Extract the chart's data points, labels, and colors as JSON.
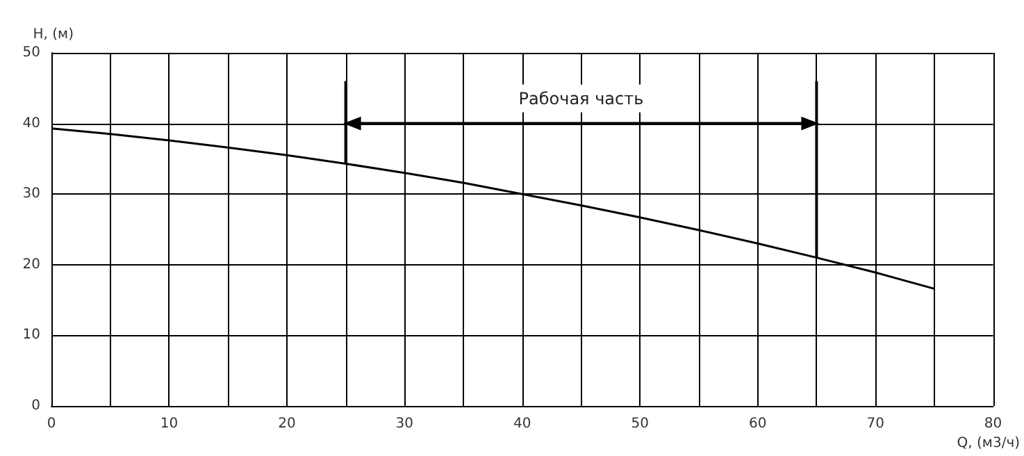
{
  "chart_data": {
    "type": "line",
    "xlabel": "Q, (м3/ч)",
    "ylabel": "H, (м)",
    "x": [
      0,
      5,
      10,
      15,
      20,
      25,
      30,
      35,
      40,
      45,
      50,
      55,
      60,
      65,
      70,
      75
    ],
    "series": [
      {
        "color": "#000000",
        "values": [
          39.3,
          38.5,
          37.6,
          36.6,
          35.5,
          34.3,
          33.0,
          31.6,
          30.0,
          28.4,
          26.7,
          24.9,
          23.0,
          21.0,
          18.9,
          16.6
        ]
      }
    ],
    "xlim": [
      0,
      80
    ],
    "xticks": [
      0,
      {
        "value": 5,
        "label": null
      },
      10,
      {
        "value": 15,
        "label": null
      },
      20,
      {
        "value": 25,
        "label": null
      },
      30,
      {
        "value": 35,
        "label": null
      },
      40,
      {
        "value": 45,
        "label": null
      },
      50,
      {
        "value": 55,
        "label": null
      },
      60,
      {
        "value": 65,
        "label": null
      },
      70,
      {
        "value": 75,
        "label": null
      },
      80
    ],
    "ylim": [
      0,
      50
    ],
    "yticks": [
      0,
      10,
      20,
      30,
      40,
      50
    ],
    "ref_lines": [
      {
        "axis": "x",
        "value": 25
      },
      {
        "axis": "x",
        "value": 65
      }
    ],
    "annotations": [
      "Рабочая часть"
    ],
    "grid": true,
    "marker": "none",
    "line_style": "solid"
  }
}
